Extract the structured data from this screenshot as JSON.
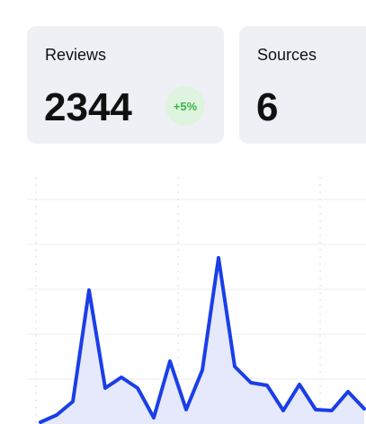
{
  "cards": [
    {
      "title": "Reviews",
      "value": "2344",
      "badge": "+5%"
    },
    {
      "title": "Sources",
      "value": "6"
    }
  ],
  "chart_data": {
    "type": "area",
    "color": "#1a3ee8",
    "fill": "#e6e9fb",
    "categories": [
      null,
      null,
      null,
      null,
      null,
      null,
      null,
      null,
      null,
      null,
      null,
      null,
      null,
      null,
      null,
      null,
      null,
      null,
      null,
      null,
      null
    ],
    "values": [
      0.04,
      0.2,
      0.5,
      2.98,
      0.8,
      1.04,
      0.8,
      0.14,
      1.4,
      0.32,
      1.2,
      3.7,
      1.28,
      0.92,
      0.86,
      0.3,
      0.88,
      0.32,
      0.3,
      0.72,
      0.34
    ],
    "ylim": [
      0,
      5.5
    ],
    "yticks": [
      1,
      2,
      3,
      4,
      5
    ],
    "grid": true
  }
}
